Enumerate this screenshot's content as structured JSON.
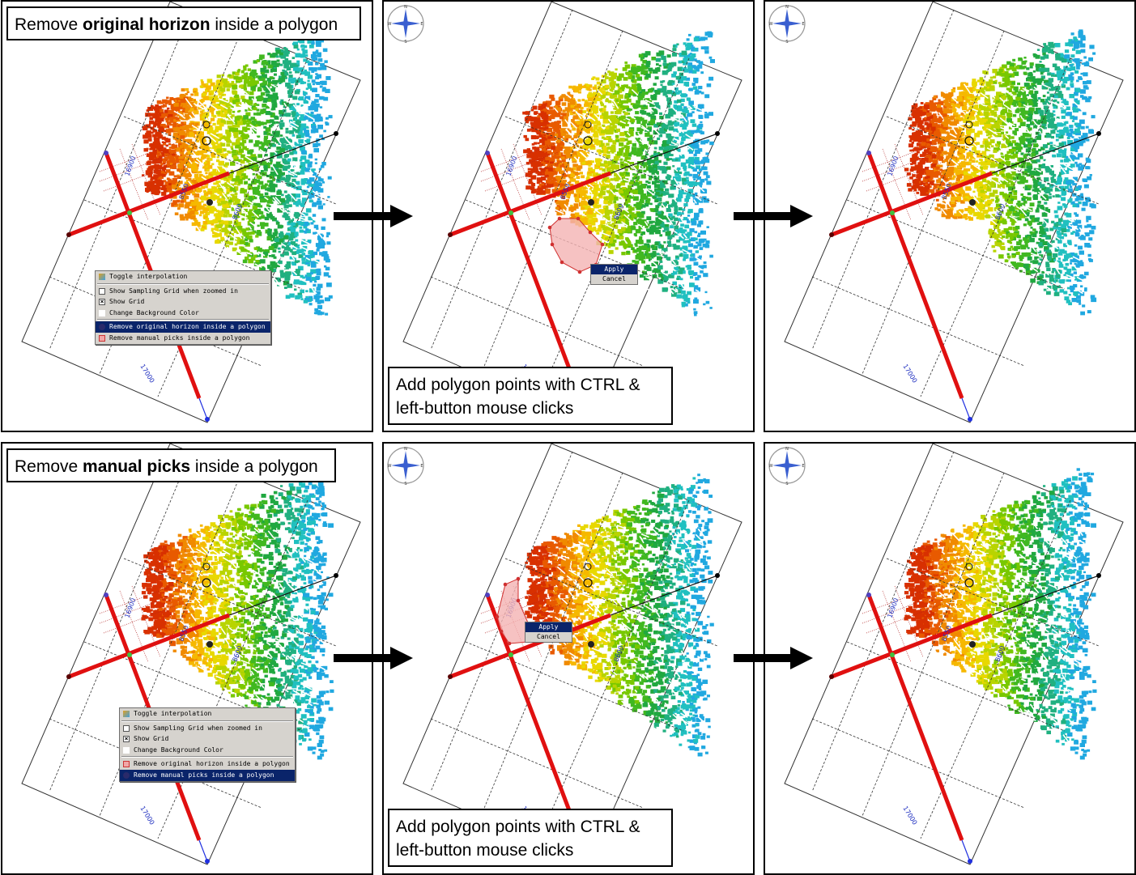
{
  "captions": {
    "top": {
      "prefix": "Remove ",
      "bold": "original horizon",
      "suffix": " inside a polygon"
    },
    "bottom": {
      "prefix": "Remove ",
      "bold": "manual picks",
      "suffix": " inside a polygon"
    },
    "hint_line1": "Add polygon points with CTRL &",
    "hint_line2": "left-button mouse clicks"
  },
  "context_menu": {
    "items": [
      {
        "label": "Toggle interpolation",
        "icon": "interpolation-icon"
      },
      {
        "label": "Show Sampling Grid when zoomed in",
        "icon": "checkbox-icon"
      },
      {
        "label": "Show Grid",
        "icon": "checkbox-checked-icon"
      },
      {
        "label": "Change Background Color",
        "icon": "color-swatch-icon"
      },
      {
        "label": "Remove original horizon inside a polygon",
        "icon": "polygon-horizon-icon"
      },
      {
        "label": "Remove manual picks inside a polygon",
        "icon": "polygon-picks-icon"
      }
    ]
  },
  "polygon_menu": {
    "apply": "Apply",
    "cancel": "Cancel"
  },
  "compass": {
    "n": "N",
    "s": "S",
    "e": "E",
    "w": "W"
  },
  "line_labels": {
    "a": "16900",
    "b": "17000",
    "c": "8550",
    "d": "8600"
  },
  "colors": {
    "pick_line": "#e01010",
    "polygon_fill": "#f4b3b3",
    "polygon_edge": "#d03030",
    "menu_highlight": "#0a246a",
    "menu_bg": "#d6d3ce"
  }
}
